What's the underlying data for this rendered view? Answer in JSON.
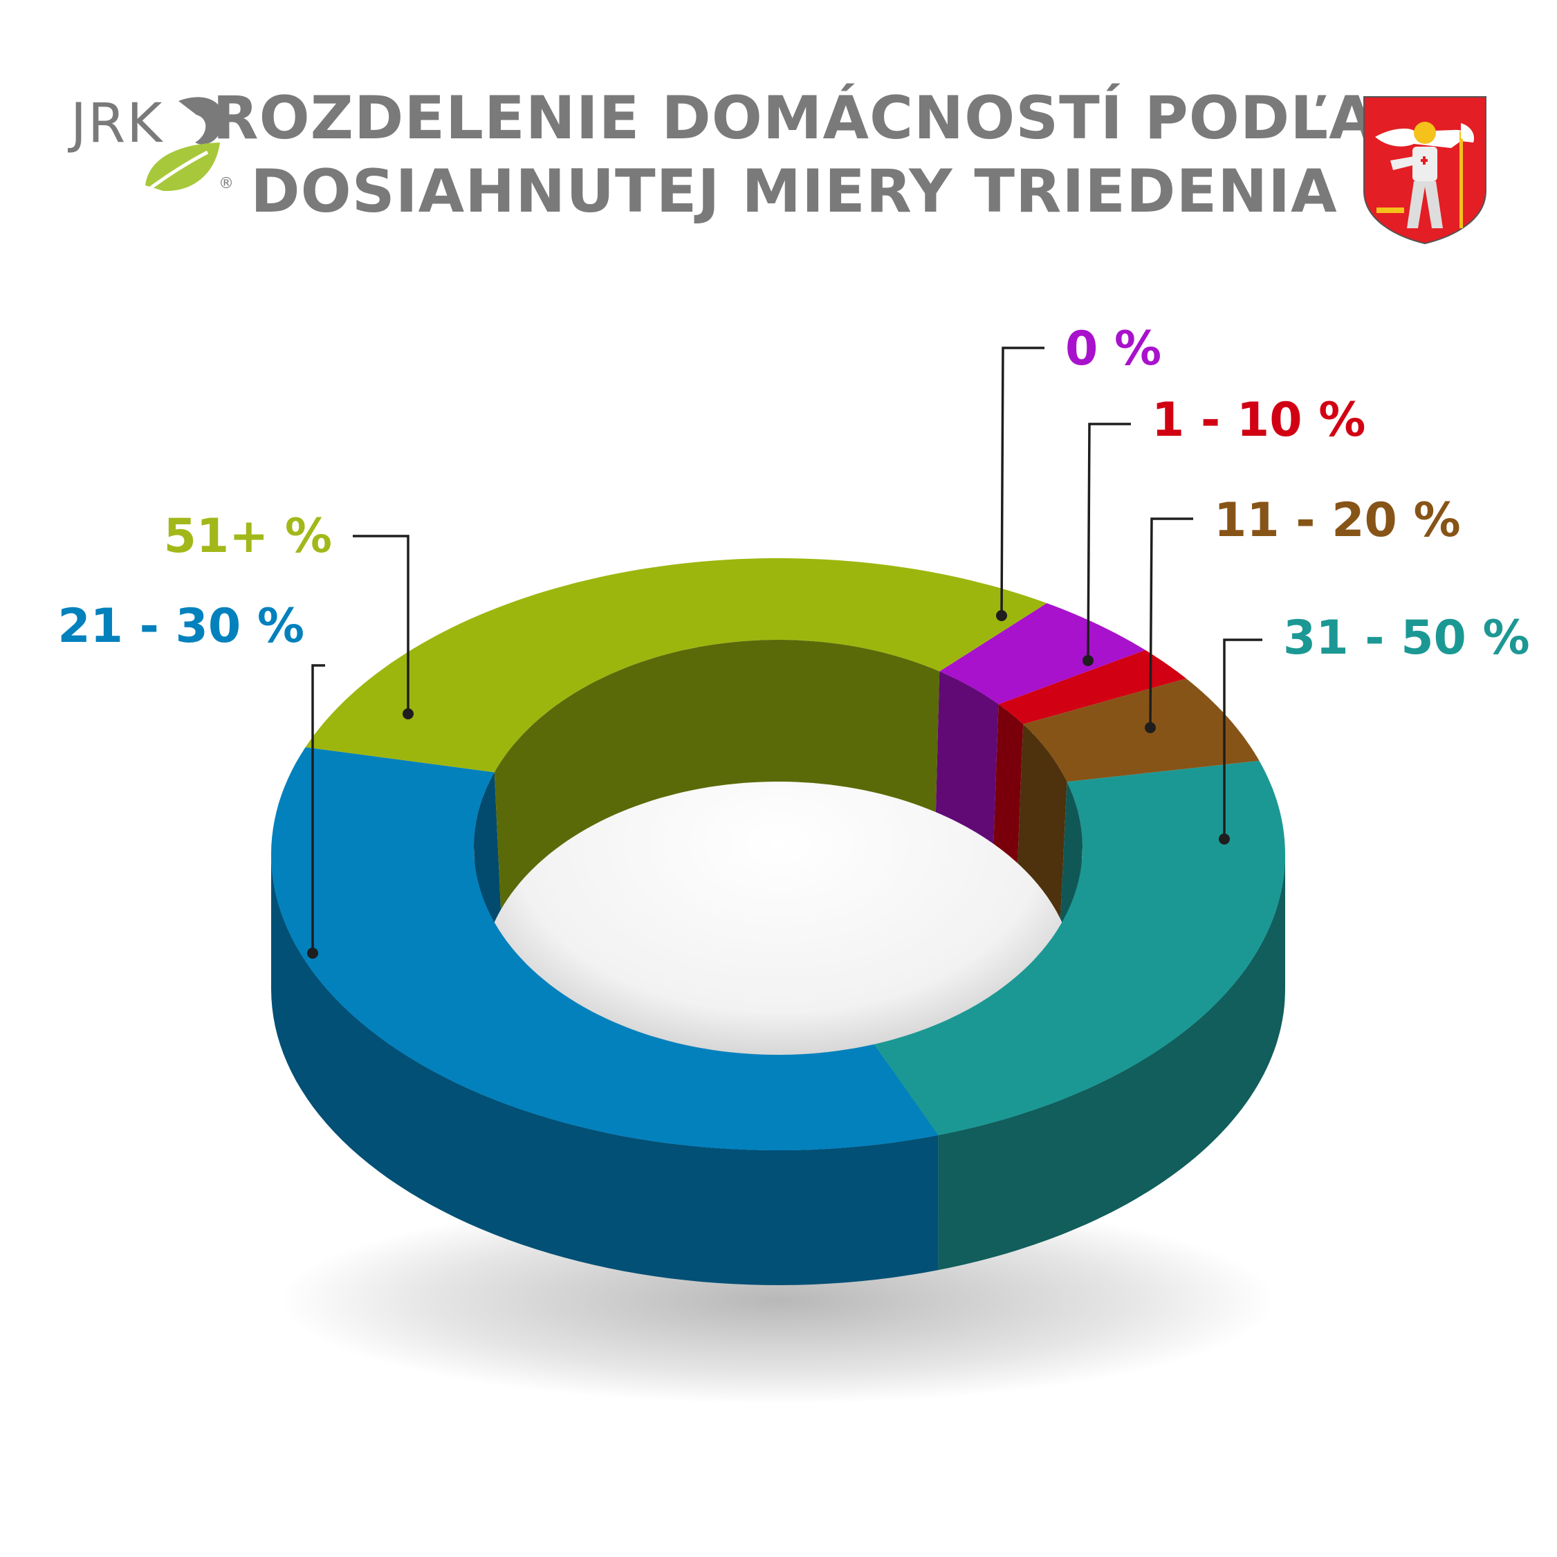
{
  "header": {
    "title_line1": "ROZDELENIE DOMÁCNOSTÍ PODĽA",
    "title_line2": "DOSIAHNUTEJ MIERY TRIEDENIA"
  },
  "logo": {
    "text": "JRK",
    "mark": "®",
    "icon": "leaf-icon"
  },
  "emblem": {
    "icon": "coat-of-arms-icon"
  },
  "chart_data": {
    "type": "pie",
    "style": "3d-donut",
    "series": [
      {
        "label": "0 %",
        "value": 4,
        "color": "#a812cc",
        "label_color": "#a812cc"
      },
      {
        "label": "1 - 10 %",
        "value": 2,
        "color": "#d10013",
        "label_color": "#d10013"
      },
      {
        "label": "11 - 20 %",
        "value": 5,
        "color": "#875417",
        "label_color": "#875417"
      },
      {
        "label": "31 - 50 %",
        "value": 25,
        "color": "#1c9894",
        "label_color": "#1c9894"
      },
      {
        "label": "21 - 30 %",
        "value": 36,
        "color": "#0381bd",
        "label_color": "#0381bd"
      },
      {
        "label": "51+ %",
        "value": 28,
        "color": "#9db60e",
        "label_color": "#a2b81a"
      }
    ]
  }
}
